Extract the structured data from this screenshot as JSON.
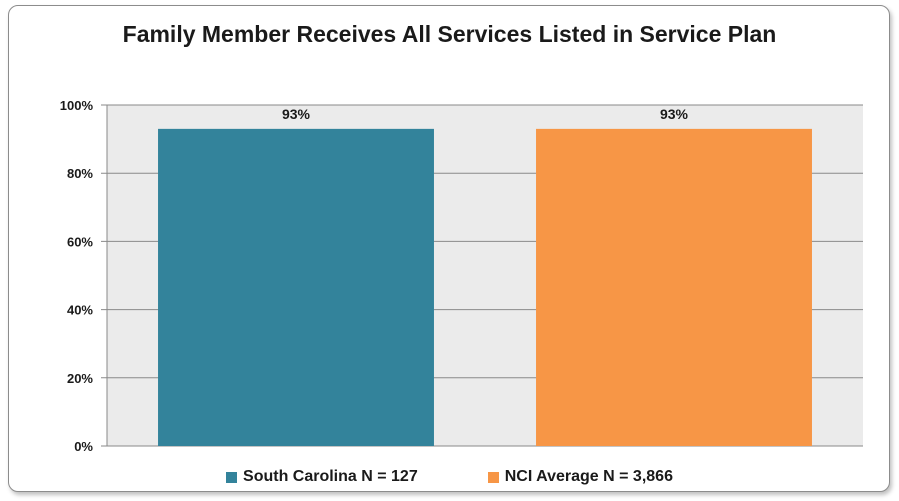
{
  "chart_data": {
    "type": "bar",
    "title": "Family Member Receives All Services Listed in Service Plan",
    "categories": [
      "South Carolina N = 127",
      "NCI Average N = 3,866"
    ],
    "values": [
      93,
      93
    ],
    "data_labels": [
      "93%",
      "93%"
    ],
    "colors": [
      "#33839b",
      "#f79646"
    ],
    "ylim": [
      0,
      100
    ],
    "yticks": [
      0,
      20,
      40,
      60,
      80,
      100
    ],
    "ytick_labels": [
      "0%",
      "20%",
      "40%",
      "60%",
      "80%",
      "100%"
    ],
    "xlabel": "",
    "ylabel": "",
    "grid": true,
    "plot_background": "#ebebeb",
    "legend_position": "bottom",
    "legend": [
      {
        "label": "South Carolina N = 127",
        "color": "#33839b"
      },
      {
        "label": "NCI Average N = 3,866",
        "color": "#f79646"
      }
    ]
  }
}
